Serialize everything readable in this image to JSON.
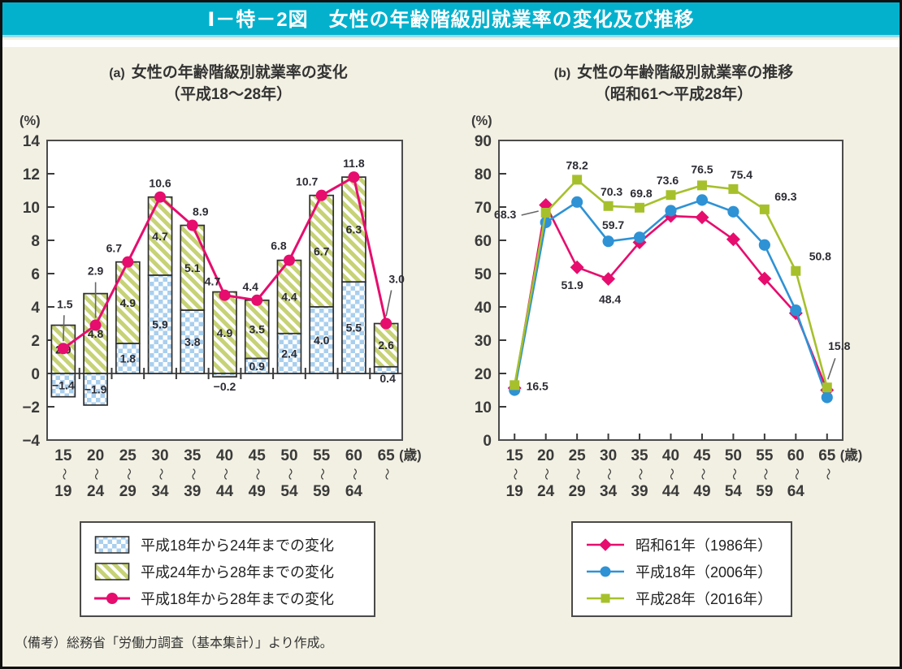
{
  "page": {
    "title": "Ⅰ－特－2図　女性の年齢階級別就業率の変化及び推移",
    "note": "（備考）総務省「労働力調査（基本集計）」より作成。"
  },
  "colors": {
    "header_bg": "#04b1cd",
    "header_underline": "#9ddbe7",
    "page_bg": "#f2f0e3",
    "plot_bg": "#ffffff",
    "plot_border": "#4c4c4c",
    "axis": "#3a3a3a",
    "bar_border": "#2f2f2f",
    "checker_blue": "#a9cfee",
    "hatch_green": "#c6d275",
    "line_pink": "#e60d6e",
    "line_blue": "#2e92d5",
    "line_green": "#a6c02c",
    "callout": "#666666"
  },
  "chart_data": [
    {
      "panel_label": "(a)",
      "type": "bar",
      "title": "女性の年齢階級別就業率の変化",
      "subtitle": "（平成18～28年）",
      "unit": "(%)",
      "ylim": [
        -4,
        14
      ],
      "yticks": [
        14,
        12,
        10,
        8,
        6,
        4,
        2,
        0,
        -2,
        -4
      ],
      "x_top": [
        "15",
        "20",
        "25",
        "30",
        "35",
        "40",
        "45",
        "50",
        "55",
        "60",
        "65"
      ],
      "x_bottom": [
        "19",
        "24",
        "29",
        "34",
        "39",
        "44",
        "49",
        "54",
        "59",
        "64",
        ""
      ],
      "x_tilde": "〜",
      "x_unit": "(歳)",
      "grid": false,
      "legend_position": "bottom",
      "series": [
        {
          "name": "平成18年から24年までの変化",
          "render": "bar",
          "pattern": "checker",
          "values": [
            -1.4,
            -1.9,
            1.8,
            5.9,
            3.8,
            -0.2,
            0.9,
            2.4,
            4.0,
            5.5,
            0.4
          ]
        },
        {
          "name": "平成24年から28年までの変化",
          "render": "bar",
          "pattern": "hatch",
          "values": [
            2.9,
            4.8,
            4.9,
            4.7,
            5.1,
            4.9,
            3.5,
            4.4,
            6.7,
            6.3,
            2.6
          ]
        },
        {
          "name": "平成18年から28年までの変化",
          "render": "line",
          "marker": "circle",
          "values": [
            1.5,
            2.9,
            6.7,
            10.6,
            8.9,
            4.7,
            4.4,
            6.8,
            10.7,
            11.8,
            3.0
          ]
        }
      ]
    },
    {
      "panel_label": "(b)",
      "type": "line",
      "title": "女性の年齢階級別就業率の推移",
      "subtitle": "（昭和61～平成28年）",
      "unit": "(%)",
      "ylim": [
        0,
        90
      ],
      "yticks": [
        90,
        80,
        70,
        60,
        50,
        40,
        30,
        20,
        10,
        0
      ],
      "x_top": [
        "15",
        "20",
        "25",
        "30",
        "35",
        "40",
        "45",
        "50",
        "55",
        "60",
        "65"
      ],
      "x_bottom": [
        "19",
        "24",
        "29",
        "34",
        "39",
        "44",
        "49",
        "54",
        "59",
        "64",
        ""
      ],
      "x_tilde": "〜",
      "x_unit": "(歳)",
      "grid": false,
      "legend_position": "bottom",
      "series": [
        {
          "name": "昭和61年（1986年）",
          "marker": "diamond",
          "values": [
            15.6,
            70.6,
            51.9,
            48.4,
            59.4,
            67.3,
            66.9,
            60.3,
            48.5,
            38.1,
            15.0
          ],
          "point_labels": {
            "2": "51.9",
            "3": "48.4"
          }
        },
        {
          "name": "平成18年（2006年）",
          "marker": "circle",
          "values": [
            15.0,
            65.4,
            71.5,
            59.7,
            60.9,
            68.9,
            72.1,
            68.6,
            58.6,
            39.0,
            12.8
          ],
          "point_labels": {
            "3": "59.7"
          }
        },
        {
          "name": "平成28年（2016年）",
          "marker": "square",
          "values": [
            16.5,
            68.3,
            78.2,
            70.3,
            69.8,
            73.6,
            76.5,
            75.4,
            69.3,
            50.8,
            15.8
          ],
          "point_labels": {
            "0": "16.5",
            "1": "68.3",
            "2": "78.2",
            "3": "70.3",
            "4": "69.8",
            "5": "73.6",
            "6": "76.5",
            "7": "75.4",
            "8": "69.3",
            "9": "50.8",
            "10": "15.8"
          }
        }
      ]
    }
  ]
}
